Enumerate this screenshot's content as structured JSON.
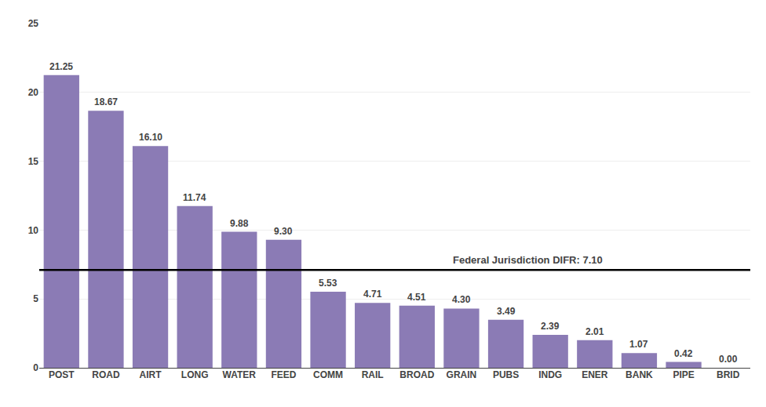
{
  "chart_data": {
    "type": "bar",
    "categories": [
      "POST",
      "ROAD",
      "AIRT",
      "LONG",
      "WATER",
      "FEED",
      "COMM",
      "RAIL",
      "BROAD",
      "GRAIN",
      "PUBS",
      "INDG",
      "ENER",
      "BANK",
      "PIPE",
      "BRID"
    ],
    "values": [
      21.25,
      18.67,
      16.1,
      11.74,
      9.88,
      9.3,
      5.53,
      4.71,
      4.51,
      4.3,
      3.49,
      2.39,
      2.01,
      1.07,
      0.42,
      0.0
    ],
    "value_labels": [
      "21.25",
      "18.67",
      "16.10",
      "11.74",
      "9.88",
      "9.30",
      "5.53",
      "4.71",
      "4.51",
      "4.30",
      "3.49",
      "2.39",
      "2.01",
      "1.07",
      "0.42",
      "0.00"
    ],
    "data_labels": true,
    "color": "#8B7BB5",
    "reference_lines": [
      {
        "value": 7.1,
        "label": "Federal Jurisdiction DIFR: 7.10"
      }
    ],
    "ylim": [
      0,
      25
    ],
    "yticks": [
      0,
      5,
      10,
      15,
      20,
      25
    ],
    "grid": true
  }
}
